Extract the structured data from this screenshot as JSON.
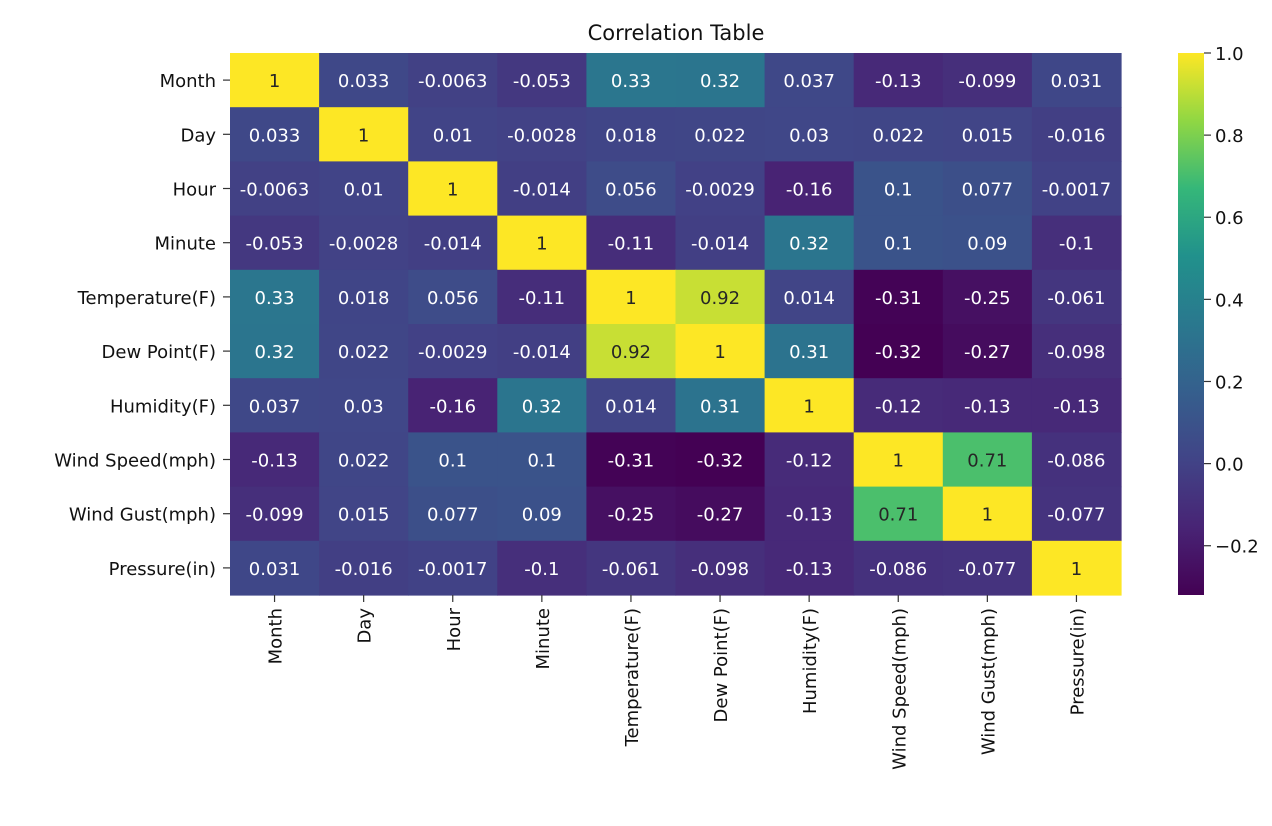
{
  "chart_data": {
    "type": "heatmap",
    "title": "Correlation Table",
    "xlabel": "",
    "ylabel": "",
    "rows": [
      "Month",
      "Day",
      "Hour",
      "Minute",
      "Temperature(F)",
      "Dew Point(F)",
      "Humidity(F)",
      "Wind Speed(mph)",
      "Wind Gust(mph)",
      "Pressure(in)"
    ],
    "columns": [
      "Month",
      "Day",
      "Hour",
      "Minute",
      "Temperature(F)",
      "Dew Point(F)",
      "Humidity(F)",
      "Wind Speed(mph)",
      "Wind Gust(mph)",
      "Pressure(in)"
    ],
    "values": [
      [
        1,
        0.033,
        -0.0063,
        -0.053,
        0.33,
        0.32,
        0.037,
        -0.13,
        -0.099,
        0.031
      ],
      [
        0.033,
        1,
        0.01,
        -0.0028,
        0.018,
        0.022,
        0.03,
        0.022,
        0.015,
        -0.016
      ],
      [
        -0.0063,
        0.01,
        1,
        -0.014,
        0.056,
        -0.0029,
        -0.16,
        0.1,
        0.077,
        -0.0017
      ],
      [
        -0.053,
        -0.0028,
        -0.014,
        1,
        -0.11,
        -0.014,
        0.32,
        0.1,
        0.09,
        -0.1
      ],
      [
        0.33,
        0.018,
        0.056,
        -0.11,
        1,
        0.92,
        0.014,
        -0.31,
        -0.25,
        -0.061
      ],
      [
        0.32,
        0.022,
        -0.0029,
        -0.014,
        0.92,
        1,
        0.31,
        -0.32,
        -0.27,
        -0.098
      ],
      [
        0.037,
        0.03,
        -0.16,
        0.32,
        0.014,
        0.31,
        1,
        -0.12,
        -0.13,
        -0.13
      ],
      [
        -0.13,
        0.022,
        0.1,
        0.1,
        -0.31,
        -0.32,
        -0.12,
        1,
        0.71,
        -0.086
      ],
      [
        -0.099,
        0.015,
        0.077,
        0.09,
        -0.25,
        -0.27,
        -0.13,
        0.71,
        1,
        -0.077
      ],
      [
        0.031,
        -0.016,
        -0.0017,
        -0.1,
        -0.061,
        -0.098,
        -0.13,
        -0.086,
        -0.077,
        1
      ]
    ],
    "cell_labels": [
      [
        "1",
        "0.033",
        "-0.0063",
        "-0.053",
        "0.33",
        "0.32",
        "0.037",
        "-0.13",
        "-0.099",
        "0.031"
      ],
      [
        "0.033",
        "1",
        "0.01",
        "-0.0028",
        "0.018",
        "0.022",
        "0.03",
        "0.022",
        "0.015",
        "-0.016"
      ],
      [
        "-0.0063",
        "0.01",
        "1",
        "-0.014",
        "0.056",
        "-0.0029",
        "-0.16",
        "0.1",
        "0.077",
        "-0.0017"
      ],
      [
        "-0.053",
        "-0.0028",
        "-0.014",
        "1",
        "-0.11",
        "-0.014",
        "0.32",
        "0.1",
        "0.09",
        "-0.1"
      ],
      [
        "0.33",
        "0.018",
        "0.056",
        "-0.11",
        "1",
        "0.92",
        "0.014",
        "-0.31",
        "-0.25",
        "-0.061"
      ],
      [
        "0.32",
        "0.022",
        "-0.0029",
        "-0.014",
        "0.92",
        "1",
        "0.31",
        "-0.32",
        "-0.27",
        "-0.098"
      ],
      [
        "0.037",
        "0.03",
        "-0.16",
        "0.32",
        "0.014",
        "0.31",
        "1",
        "-0.12",
        "-0.13",
        "-0.13"
      ],
      [
        "-0.13",
        "0.022",
        "0.1",
        "0.1",
        "-0.31",
        "-0.32",
        "-0.12",
        "1",
        "0.71",
        "-0.086"
      ],
      [
        "-0.099",
        "0.015",
        "0.077",
        "0.09",
        "-0.25",
        "-0.27",
        "-0.13",
        "0.71",
        "1",
        "-0.077"
      ],
      [
        "0.031",
        "-0.016",
        "-0.0017",
        "-0.1",
        "-0.061",
        "-0.098",
        "-0.13",
        "-0.086",
        "-0.077",
        "1"
      ]
    ],
    "colormap": "viridis",
    "color_range": [
      -0.32,
      1.0
    ],
    "colorbar": {
      "ticks": [
        -0.2,
        0.0,
        0.2,
        0.4,
        0.6,
        0.8,
        1.0
      ],
      "tick_labels": [
        "−0.2",
        "0.0",
        "0.2",
        "0.4",
        "0.6",
        "0.8",
        "1.0"
      ],
      "placement": "right"
    },
    "grid": false,
    "legend": "none"
  }
}
